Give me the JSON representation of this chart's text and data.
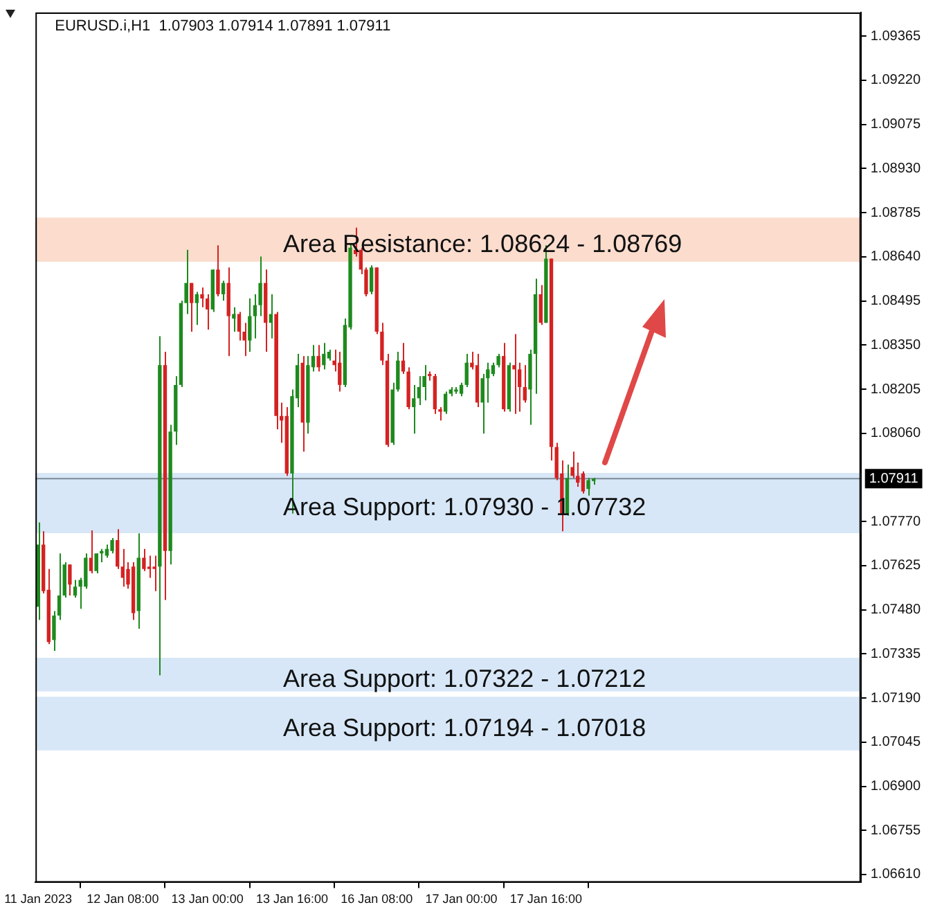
{
  "chart_data": {
    "type": "candlestick",
    "title": "EURUSD.i,H1  1.07903 1.07914 1.07891 1.07911",
    "categories": [
      "11 Jan 2023",
      null,
      null,
      null,
      null,
      null,
      null,
      null,
      null,
      null,
      null,
      null,
      null,
      null,
      null,
      null,
      "12 Jan 08:00",
      null,
      null,
      null,
      null,
      null,
      null,
      null,
      null,
      null,
      null,
      null,
      null,
      null,
      null,
      null,
      "13 Jan 00:00",
      null,
      null,
      null,
      null,
      null,
      null,
      null,
      null,
      null,
      null,
      null,
      null,
      null,
      null,
      null,
      "13 Jan 16:00",
      null,
      null,
      null,
      null,
      null,
      null,
      null,
      null,
      null,
      null,
      null,
      null,
      null,
      null,
      null,
      "16 Jan 08:00",
      null,
      null,
      null,
      null,
      null,
      null,
      null,
      null,
      null,
      null,
      null,
      null,
      null,
      null,
      null,
      "17 Jan 00:00",
      null,
      null,
      null,
      null,
      null,
      null,
      null,
      null,
      null,
      null,
      null,
      null,
      null,
      null,
      null,
      "17 Jan 16:00",
      null,
      null,
      null,
      null,
      null,
      null,
      null,
      null,
      null,
      null,
      null,
      null,
      null,
      null,
      null,
      null,
      null,
      null,
      null,
      null,
      null,
      null,
      null,
      null,
      null,
      null,
      null,
      null,
      null,
      null,
      null,
      null,
      null,
      null,
      null,
      null,
      null,
      null,
      null,
      null,
      null,
      null,
      null,
      null,
      null,
      null,
      null,
      null,
      null,
      null,
      null,
      null,
      null,
      null,
      null,
      null,
      null,
      null,
      null
    ],
    "ohlc": [
      [
        1.0749,
        1.07767,
        1.07447,
        1.07694
      ],
      [
        1.07694,
        1.07738,
        1.07534,
        1.07541
      ],
      [
        1.07546,
        1.07614,
        1.07367,
        1.07374
      ],
      [
        1.07381,
        1.07476,
        1.07345,
        1.07461
      ],
      [
        1.07461,
        1.07665,
        1.07447,
        1.07527
      ],
      [
        1.07527,
        1.07636,
        1.0752,
        1.07629
      ],
      [
        1.07629,
        1.07629,
        1.07527,
        1.07563
      ],
      [
        1.07527,
        1.07578,
        1.0752,
        1.07556
      ],
      [
        1.07556,
        1.07585,
        1.07483,
        1.07578
      ],
      [
        1.07556,
        1.07665,
        1.07549,
        1.07651
      ],
      [
        1.07651,
        1.07741,
        1.076,
        1.07607
      ],
      [
        1.07607,
        1.07665,
        1.076,
        1.07665
      ],
      [
        1.07665,
        1.0768,
        1.07636,
        1.07673
      ],
      [
        1.07658,
        1.07694,
        1.07651,
        1.0768
      ],
      [
        1.07673,
        1.07716,
        1.07665,
        1.07709
      ],
      [
        1.07709,
        1.07745,
        1.07614,
        1.07622
      ],
      [
        1.07622,
        1.0768,
        1.07556,
        1.07585
      ],
      [
        1.07614,
        1.07636,
        1.07549,
        1.07563
      ],
      [
        1.07622,
        1.07636,
        1.07447,
        1.07469
      ],
      [
        1.07476,
        1.07731,
        1.07418,
        1.07651
      ],
      [
        1.07651,
        1.0768,
        1.07607,
        1.07614
      ],
      [
        1.07622,
        1.07658,
        1.07585,
        1.07614
      ],
      [
        1.07622,
        1.07658,
        1.07541,
        1.07614
      ],
      [
        1.07622,
        1.08379,
        1.07265,
        1.08284
      ],
      [
        1.08284,
        1.08328,
        1.07512,
        1.07673
      ],
      [
        1.07673,
        1.08088,
        1.07629,
        1.08066
      ],
      [
        1.08066,
        1.08248,
        1.08022,
        1.08219
      ],
      [
        1.08219,
        1.08496,
        1.08212,
        1.08488
      ],
      [
        1.08488,
        1.08663,
        1.08452,
        1.08554
      ],
      [
        1.08554,
        1.08554,
        1.08394,
        1.08488
      ],
      [
        1.08488,
        1.08525,
        1.08416,
        1.08517
      ],
      [
        1.08517,
        1.08539,
        1.08474,
        1.08503
      ],
      [
        1.08503,
        1.08517,
        1.08401,
        1.08467
      ],
      [
        1.08467,
        1.08598,
        1.08459,
        1.08598
      ],
      [
        1.08598,
        1.08678,
        1.0851,
        1.08517
      ],
      [
        1.08517,
        1.08561,
        1.08496,
        1.08554
      ],
      [
        1.08554,
        1.08605,
        1.08314,
        1.08445
      ],
      [
        1.08437,
        1.08474,
        1.08394,
        1.08452
      ],
      [
        1.08452,
        1.08459,
        1.08365,
        1.08394
      ],
      [
        1.08394,
        1.08423,
        1.08314,
        1.08365
      ],
      [
        1.08365,
        1.08503,
        1.08328,
        1.08445
      ],
      [
        1.08445,
        1.08517,
        1.08372,
        1.08481
      ],
      [
        1.08481,
        1.08641,
        1.08445,
        1.08554
      ],
      [
        1.08554,
        1.08598,
        1.08328,
        1.08423
      ],
      [
        1.08423,
        1.08517,
        1.08372,
        1.08452
      ],
      [
        1.08452,
        1.08459,
        1.08073,
        1.08117
      ],
      [
        1.08117,
        1.08161,
        1.08029,
        1.08102
      ],
      [
        1.08117,
        1.08146,
        1.0792,
        1.07928
      ],
      [
        1.07928,
        1.08204,
        1.07796,
        1.08182
      ],
      [
        1.08175,
        1.08321,
        1.08146,
        1.08284
      ],
      [
        1.08292,
        1.08314,
        1.08,
        1.08095
      ],
      [
        1.08095,
        1.08314,
        1.08059,
        1.08284
      ],
      [
        1.08277,
        1.0835,
        1.08263,
        1.08314
      ],
      [
        1.08314,
        1.0835,
        1.08263,
        1.08277
      ],
      [
        1.08284,
        1.08357,
        1.0827,
        1.08321
      ],
      [
        1.08306,
        1.08335,
        1.08299,
        1.08328
      ],
      [
        1.08299,
        1.08335,
        1.08263,
        1.08284
      ],
      [
        1.08292,
        1.08328,
        1.08197,
        1.08219
      ],
      [
        1.08219,
        1.08437,
        1.08212,
        1.08416
      ],
      [
        1.08408,
        1.08685,
        1.08401,
        1.0867
      ],
      [
        1.08663,
        1.08736,
        1.08641,
        1.08649
      ],
      [
        1.08663,
        1.0867,
        1.08583,
        1.08598
      ],
      [
        1.08598,
        1.08605,
        1.0851,
        1.08517
      ],
      [
        1.08525,
        1.08612,
        1.08517,
        1.08605
      ],
      [
        1.08605,
        1.08605,
        1.08386,
        1.08394
      ],
      [
        1.08394,
        1.08423,
        1.08284,
        1.08299
      ],
      [
        1.08299,
        1.08321,
        1.08015,
        1.08022
      ],
      [
        1.08029,
        1.08226,
        1.08022,
        1.08204
      ],
      [
        1.08204,
        1.08328,
        1.08197,
        1.08299
      ],
      [
        1.08299,
        1.08357,
        1.08255,
        1.08263
      ],
      [
        1.08263,
        1.08277,
        1.08139,
        1.08146
      ],
      [
        1.08146,
        1.08219,
        1.08059,
        1.08175
      ],
      [
        1.08175,
        1.08248,
        1.08153,
        1.08212
      ],
      [
        1.08212,
        1.08284,
        1.08168,
        1.08248
      ],
      [
        1.08255,
        1.08263,
        1.08233,
        1.08248
      ],
      [
        1.08248,
        1.08255,
        1.08124,
        1.08139
      ],
      [
        1.08139,
        1.08146,
        1.08102,
        1.08131
      ],
      [
        1.08131,
        1.08197,
        1.08124,
        1.0819
      ],
      [
        1.0819,
        1.08212,
        1.08182,
        1.08204
      ],
      [
        1.08197,
        1.08212,
        1.0819,
        1.08204
      ],
      [
        1.0819,
        1.08226,
        1.08182,
        1.08219
      ],
      [
        1.08219,
        1.08321,
        1.08212,
        1.08292
      ],
      [
        1.08292,
        1.08328,
        1.0827,
        1.08277
      ],
      [
        1.08284,
        1.08321,
        1.08146,
        1.08161
      ],
      [
        1.08161,
        1.08255,
        1.08059,
        1.08241
      ],
      [
        1.08241,
        1.08292,
        1.08161,
        1.0827
      ],
      [
        1.08255,
        1.08292,
        1.08248,
        1.08284
      ],
      [
        1.08284,
        1.08321,
        1.08277,
        1.08314
      ],
      [
        1.08314,
        1.08357,
        1.08131,
        1.08139
      ],
      [
        1.08139,
        1.08292,
        1.08131,
        1.08284
      ],
      [
        1.08284,
        1.08386,
        1.08124,
        1.0827
      ],
      [
        1.0827,
        1.08292,
        1.08131,
        1.08212
      ],
      [
        1.08212,
        1.08284,
        1.08161,
        1.08168
      ],
      [
        1.08204,
        1.08335,
        1.08088,
        1.08321
      ],
      [
        1.08321,
        1.08568,
        1.0819,
        1.08517
      ],
      [
        1.08517,
        1.08547,
        1.08416,
        1.08423
      ],
      [
        1.08423,
        1.08678,
        1.08423,
        1.08634
      ],
      [
        1.08634,
        1.08634,
        1.07971,
        1.08015
      ],
      [
        1.08015,
        1.08029,
        1.07906,
        1.07913
      ],
      [
        1.07928,
        1.07971,
        1.07738,
        1.07796
      ],
      [
        1.07796,
        1.07957,
        1.07789,
        1.07913
      ],
      [
        1.07949,
        1.08,
        1.07913,
        1.0792
      ],
      [
        1.0792,
        1.07964,
        1.07884,
        1.07898
      ],
      [
        1.07928,
        1.07935,
        1.07862,
        1.07869
      ],
      [
        1.07877,
        1.07913,
        1.07855,
        1.07906
      ],
      [
        1.07903,
        1.07914,
        1.07891,
        1.07911
      ],
      null,
      null,
      null,
      null,
      null,
      null,
      null,
      null,
      null,
      null,
      null,
      null,
      null,
      null,
      null,
      null,
      null,
      null,
      null,
      null,
      null,
      null,
      null,
      null,
      null,
      null,
      null,
      null,
      null,
      null,
      null,
      null,
      null,
      null,
      null,
      null,
      null,
      null,
      null,
      null,
      null,
      null,
      null,
      null,
      null,
      null,
      null,
      null,
      null,
      null
    ],
    "ylim": [
      1.06584,
      1.09443
    ],
    "yticks": [
      1.09365,
      {
        "value": 1.0922,
        "label": "1.09220"
      },
      1.09075,
      {
        "value": 1.0893,
        "label": "1.08930"
      },
      1.08785,
      {
        "value": 1.0864,
        "label": "1.08640"
      },
      1.08495,
      {
        "value": 1.0835,
        "label": "1.08350"
      },
      1.08205,
      {
        "value": 1.0806,
        "label": "1.08060"
      },
      {
        "value": 1.0777,
        "label": "1.07770"
      },
      1.07625,
      {
        "value": 1.0748,
        "label": "1.07480"
      },
      1.07335,
      {
        "value": 1.0719,
        "label": "1.07190"
      },
      1.07045,
      {
        "value": 1.069,
        "label": "1.06900"
      },
      1.06755,
      {
        "value": 1.0661,
        "label": "1.06610"
      }
    ],
    "bands": [
      {
        "axis": "y",
        "from": 1.08624,
        "to": 1.08769,
        "label": "Area Resistance: 1.08624 - 1.08769",
        "color": "#fbdccd"
      },
      {
        "axis": "y",
        "from": 1.0793,
        "to": 1.07732,
        "label": "Area Support: 1.07930 - 1.07732",
        "color": "#d7e7f7"
      },
      {
        "axis": "y",
        "from": 1.07322,
        "to": 1.07212,
        "label": "Area Support: 1.07322 - 1.07212",
        "color": "#d7e7f7"
      },
      {
        "axis": "y",
        "from": 1.07194,
        "to": 1.07018,
        "label": "Area Support: 1.07194 - 1.07018",
        "color": "#d7e7f7"
      }
    ],
    "ref_lines": [
      {
        "axis": "y",
        "value": 1.07911,
        "label": "1.07911",
        "color": "#7a8a99"
      }
    ]
  }
}
